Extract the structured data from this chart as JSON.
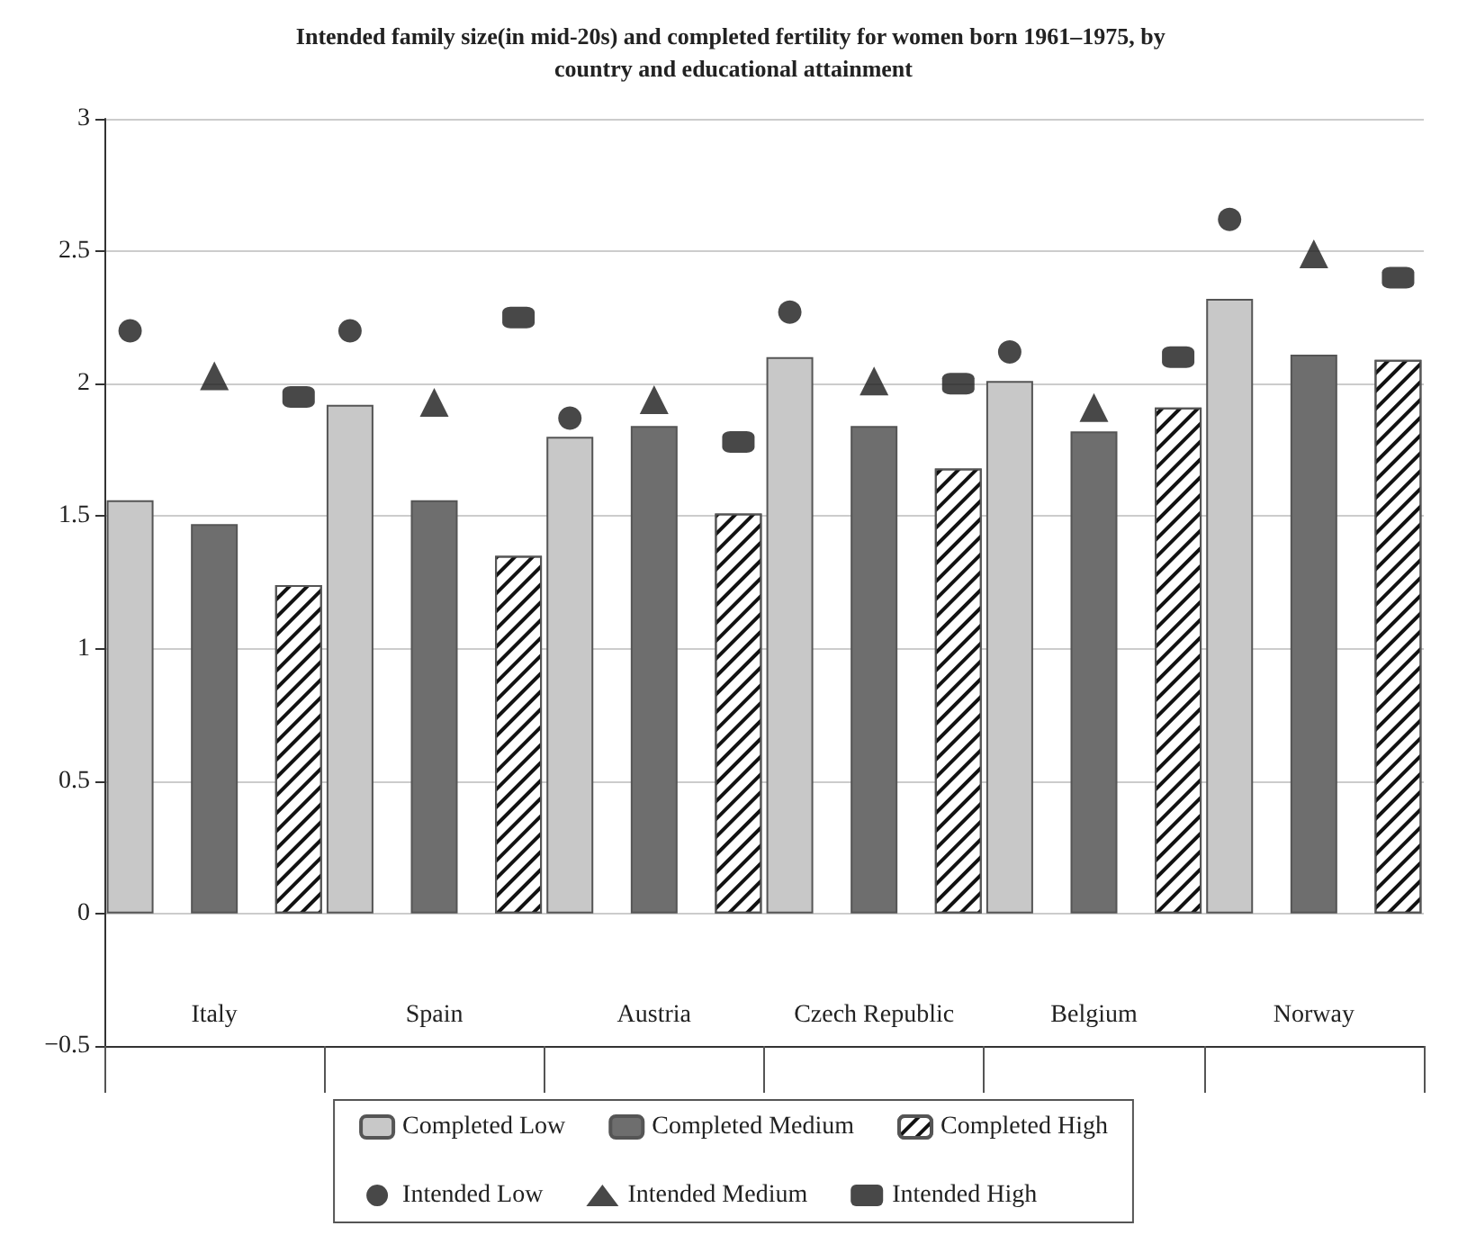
{
  "chart_data": {
    "type": "bar",
    "title": "Intended family size(in mid-20s) and completed fertility for women born 1961–1975, by country and educational attainment",
    "categories": [
      "Italy",
      "Spain",
      "Austria",
      "Czech Republic",
      "Belgium",
      "Norway"
    ],
    "series": [
      {
        "name": "Completed Low",
        "color": "#c8c8c8",
        "values": [
          1.56,
          1.92,
          1.8,
          2.1,
          2.01,
          2.32
        ]
      },
      {
        "name": "Completed Medium",
        "color": "#6e6e6e",
        "values": [
          1.47,
          1.56,
          1.84,
          1.84,
          1.82,
          2.11
        ]
      },
      {
        "name": "Completed High",
        "color": "#ffffff",
        "values": [
          1.24,
          1.35,
          1.51,
          1.68,
          1.91,
          2.09
        ]
      },
      {
        "name": "Intended Low",
        "type": "scatter",
        "marker": "circle",
        "color": "#1a1a1a",
        "x": [
          "Italy",
          "Spain",
          "Austria",
          "Czech Republic",
          "Belgium",
          "Norway"
        ],
        "values": [
          2.2,
          2.2,
          1.87,
          2.27,
          2.12,
          2.62
        ]
      },
      {
        "name": "Intended Medium",
        "type": "scatter",
        "marker": "triangle",
        "color": "#1a1a1a",
        "x": [
          "Italy",
          "Spain",
          "Austria",
          "Czech Republic",
          "Belgium",
          "Norway"
        ],
        "values": [
          2.03,
          1.93,
          1.94,
          2.01,
          1.91,
          2.49
        ]
      },
      {
        "name": "Intended High",
        "type": "scatter",
        "marker": "square",
        "color": "#1a1a1a",
        "x": [
          "Italy",
          "Spain",
          "Austria",
          "Czech Republic",
          "Belgium",
          "Norway"
        ],
        "values": [
          1.95,
          2.25,
          1.78,
          2.0,
          2.1,
          2.4
        ]
      }
    ],
    "ylim": [
      -0.5,
      3
    ],
    "yticks": [
      {
        "value": -0.5,
        "label": "−0.5"
      },
      0,
      0.5,
      1,
      1.5,
      2,
      2.5,
      3
    ],
    "grid": "y",
    "legend": "bottom"
  }
}
